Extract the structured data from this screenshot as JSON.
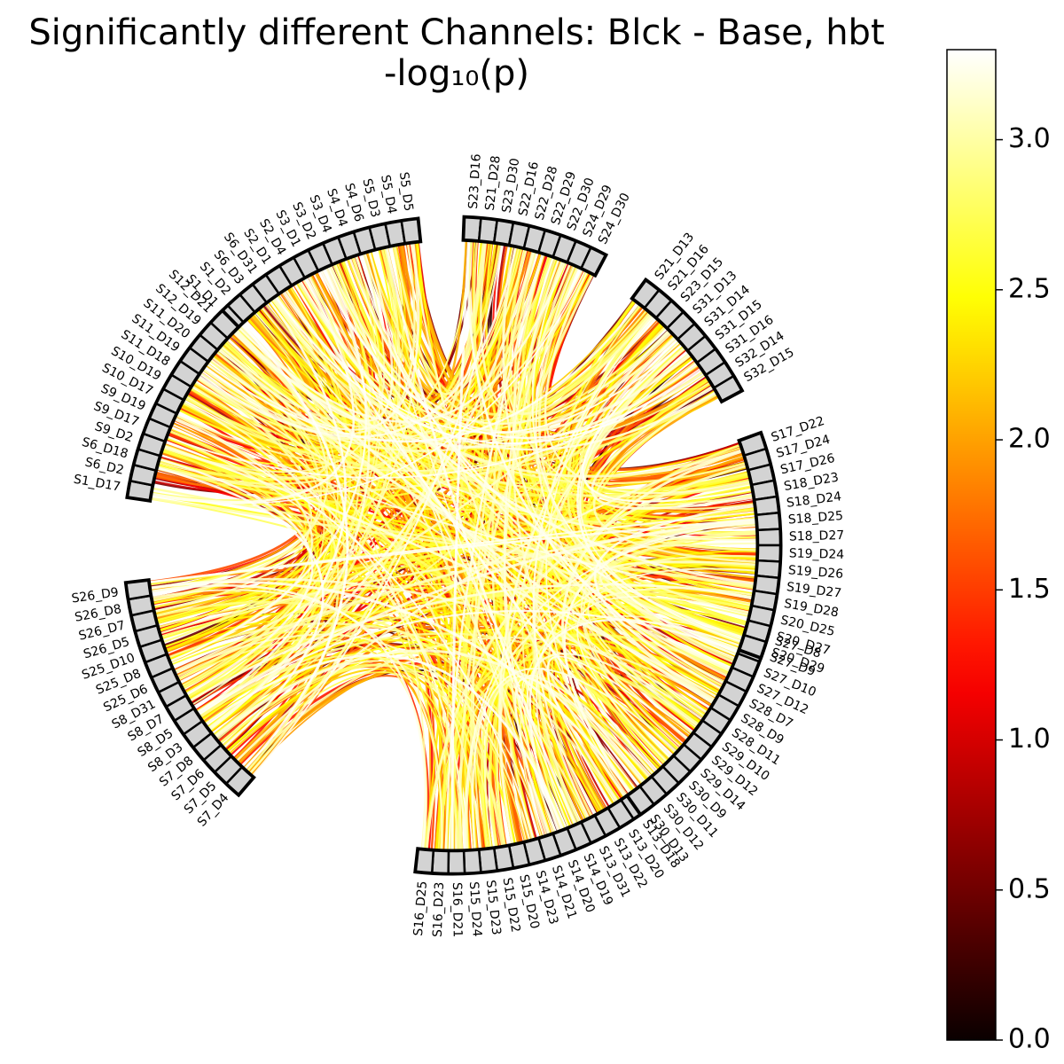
{
  "chart_data": {
    "type": "chord",
    "title": "Significantly different Channels: Blck - Base, hbt",
    "subtitle": "-log₁₀(p)",
    "colormap": "hot",
    "colorbar": {
      "min": 0.0,
      "max": 3.3,
      "ticks": [
        "0.0",
        "0.5",
        "1.0",
        "1.5",
        "2.0",
        "2.5",
        "3.0"
      ]
    },
    "groups": [
      {
        "channels": [
          "S1_D1",
          "S1_D2",
          "S6_D3",
          "S6_D31",
          "S2_D1",
          "S2_D4",
          "S3_D1",
          "S3_D2",
          "S3_D4",
          "S4_D4",
          "S4_D6",
          "S5_D3",
          "S5_D4",
          "S5_D5"
        ]
      },
      {
        "channels": [
          "S1_D17",
          "S6_D2",
          "S6_D18",
          "S9_D2",
          "S9_D17",
          "S9_D19",
          "S10_D17",
          "S10_D19",
          "S11_D18",
          "S11_D19",
          "S11_D20",
          "S12_D19",
          "S12_D21"
        ]
      },
      {
        "channels": [
          "S7_D4",
          "S7_D5",
          "S7_D6",
          "S7_D8",
          "S8_D3",
          "S8_D5",
          "S8_D7",
          "S8_D31",
          "S25_D6",
          "S25_D8",
          "S25_D10",
          "S26_D5",
          "S26_D7",
          "S26_D8",
          "S26_D9"
        ]
      },
      {
        "channels": [
          "S13_D18",
          "S13_D20",
          "S13_D22",
          "S13_D31",
          "S14_D19",
          "S14_D20",
          "S14_D21",
          "S14_D23",
          "S15_D20",
          "S15_D22",
          "S15_D23",
          "S15_D24",
          "S16_D21",
          "S16_D23",
          "S16_D25"
        ]
      },
      {
        "channels": [
          "S27_D8",
          "S27_D9",
          "S27_D10",
          "S27_D12",
          "S28_D7",
          "S28_D9",
          "S28_D11",
          "S29_D10",
          "S29_D12",
          "S29_D14",
          "S30_D9",
          "S30_D11",
          "S30_D12",
          "S30_D13"
        ]
      },
      {
        "channels": [
          "S17_D22",
          "S17_D24",
          "S17_D26",
          "S18_D23",
          "S18_D24",
          "S18_D25",
          "S18_D27",
          "S19_D24",
          "S19_D26",
          "S19_D27",
          "S19_D28",
          "S20_D25",
          "S20_D27",
          "S20_D29"
        ]
      },
      {
        "channels": [
          "S21_D13",
          "S21_D16",
          "S23_D15",
          "S31_D13",
          "S31_D14",
          "S31_D15",
          "S31_D16",
          "S32_D14",
          "S32_D15"
        ]
      },
      {
        "channels": [
          "S23_D16",
          "S21_D28",
          "S23_D30",
          "S22_D16",
          "S22_D28",
          "S22_D29",
          "S22_D30",
          "S24_D29",
          "S24_D30"
        ]
      }
    ],
    "connections": "dense all-to-all chords between channels, colored by -log10(p)"
  }
}
